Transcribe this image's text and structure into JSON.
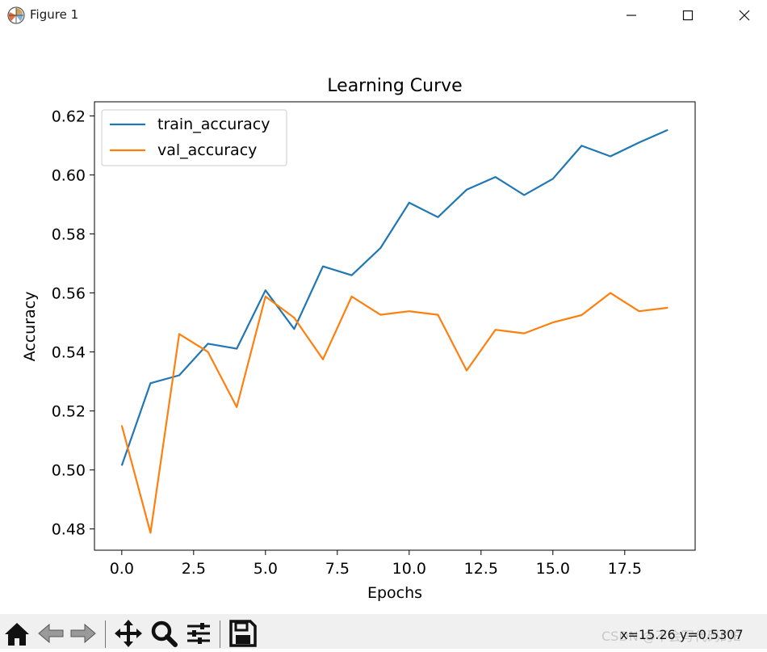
{
  "window": {
    "title": "Figure 1",
    "icon": "matplotlib-figure-icon"
  },
  "toolbar": {
    "tools": [
      "home-icon",
      "back-arrow-icon",
      "forward-arrow-icon",
      "pan-icon",
      "zoom-icon",
      "configure-subplots-icon",
      "save-icon"
    ],
    "coordinates": "x=15.26 y=0.5307",
    "watermark": "CSDN @不会写代码的E"
  },
  "colors": {
    "train": "#1f77b4",
    "val": "#ff7f0e"
  },
  "chart_data": {
    "type": "line",
    "title": "Learning Curve",
    "xlabel": "Epochs",
    "ylabel": "Accuracy",
    "xlim": [
      -0.95,
      19.95
    ],
    "ylim": [
      0.4728,
      0.6248
    ],
    "xticks": [
      0,
      2.5,
      5,
      7.5,
      10,
      12.5,
      15,
      17.5
    ],
    "xtick_labels": [
      "0.0",
      "2.5",
      "5.0",
      "7.5",
      "10.0",
      "12.5",
      "15.0",
      "17.5"
    ],
    "yticks": [
      0.48,
      0.5,
      0.52,
      0.54,
      0.56,
      0.58,
      0.6,
      0.62
    ],
    "ytick_labels": [
      "0.48",
      "0.50",
      "0.52",
      "0.54",
      "0.56",
      "0.58",
      "0.60",
      "0.62"
    ],
    "legend_position": "top-left",
    "x": [
      0,
      1,
      2,
      3,
      4,
      5,
      6,
      7,
      8,
      9,
      10,
      11,
      12,
      13,
      14,
      15,
      16,
      17,
      18,
      19
    ],
    "series": [
      {
        "name": "train_accuracy",
        "values": [
          0.5015,
          0.5294,
          0.5321,
          0.5428,
          0.5411,
          0.5609,
          0.5478,
          0.569,
          0.566,
          0.5752,
          0.5906,
          0.5857,
          0.595,
          0.5993,
          0.5932,
          0.5987,
          0.6099,
          0.6063,
          0.611,
          0.6153
        ]
      },
      {
        "name": "val_accuracy",
        "values": [
          0.5151,
          0.4787,
          0.5461,
          0.54,
          0.5213,
          0.5588,
          0.5516,
          0.5375,
          0.5588,
          0.5526,
          0.5538,
          0.5526,
          0.5337,
          0.5475,
          0.5463,
          0.55,
          0.5525,
          0.56,
          0.5538,
          0.555
        ]
      }
    ]
  }
}
